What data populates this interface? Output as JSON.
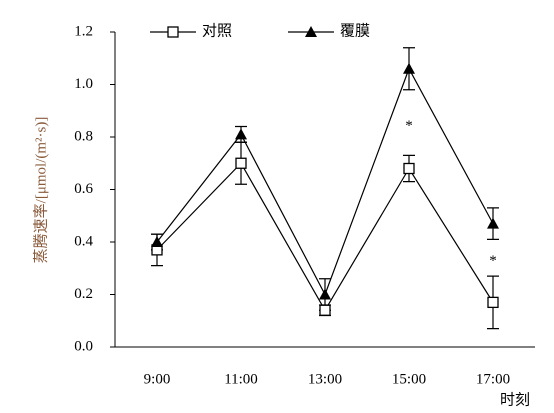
{
  "chart_data": {
    "type": "line",
    "categories": [
      "9:00",
      "11:00",
      "13:00",
      "15:00",
      "17:00"
    ],
    "x_label": "时刻",
    "y_label": "蒸腾速率/[μmol/(m²·s)]",
    "ylim": [
      0,
      1.2
    ],
    "yticks": [
      {
        "value": 0,
        "label": "0.0"
      },
      0.2,
      0.4,
      0.6,
      0.8,
      {
        "value": 1,
        "label": "1.0"
      },
      0.2,
      1.2
    ],
    "legend": "top",
    "series": [
      {
        "name": "对照",
        "color": "#000000",
        "marker": "square",
        "values": [
          0.37,
          0.7,
          0.14,
          0.68,
          0.17
        ],
        "errors": [
          0.06,
          0.08,
          0.02,
          0.05,
          0.1
        ]
      },
      {
        "name": "覆膜",
        "color": "#000000",
        "marker": "triangle",
        "values": [
          0.4,
          0.81,
          0.2,
          1.06,
          0.47
        ],
        "errors": [
          0.03,
          0.03,
          0.06,
          0.08,
          0.06
        ]
      }
    ],
    "annotations": [
      {
        "text": "*",
        "x": "15:00"
      },
      {
        "text": "*",
        "x": "17:00"
      }
    ]
  }
}
